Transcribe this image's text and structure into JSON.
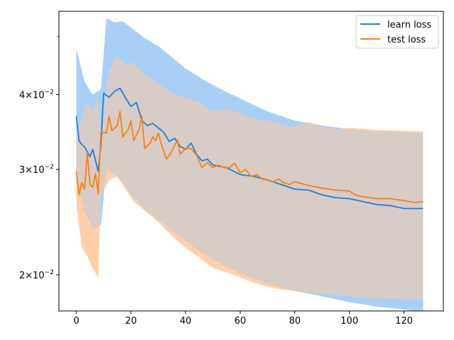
{
  "chart_data": {
    "type": "line",
    "title": "",
    "xlabel": "",
    "ylabel": "",
    "yscale": "log",
    "xlim": [
      -6.4,
      134.4
    ],
    "ylim": [
      0.0174,
      0.0551
    ],
    "xticks": [
      0,
      20,
      40,
      60,
      80,
      100,
      120
    ],
    "xtick_labels": [
      "0",
      "20",
      "40",
      "60",
      "80",
      "100",
      "120"
    ],
    "yticks": [
      0.02,
      0.03,
      0.04
    ],
    "ytick_labels": [
      {
        "base": "2×10",
        "exp": "−2"
      },
      {
        "base": "3×10",
        "exp": "−2"
      },
      {
        "base": "4×10",
        "exp": "−2"
      }
    ],
    "legend": {
      "position": "upper-right"
    },
    "series": [
      {
        "name": "learn loss",
        "color": "#1f77b4",
        "line_color": "#1a80e6",
        "band_color": "#a8d0f7",
        "keypoints": [
          [
            0,
            0.0368
          ],
          [
            1,
            0.0335
          ],
          [
            2,
            0.033
          ],
          [
            3,
            0.0327
          ],
          [
            5,
            0.0315
          ],
          [
            6,
            0.0324
          ],
          [
            8,
            0.0298
          ],
          [
            9,
            0.033
          ],
          [
            10,
            0.0402
          ],
          [
            12,
            0.0396
          ],
          [
            14,
            0.0405
          ],
          [
            16,
            0.041
          ],
          [
            18,
            0.0395
          ],
          [
            20,
            0.0382
          ],
          [
            22,
            0.0388
          ],
          [
            24,
            0.0362
          ],
          [
            26,
            0.0355
          ],
          [
            28,
            0.0358
          ],
          [
            30,
            0.0352
          ],
          [
            32,
            0.0346
          ],
          [
            34,
            0.0334
          ],
          [
            36,
            0.0338
          ],
          [
            38,
            0.0328
          ],
          [
            40,
            0.0324
          ],
          [
            42,
            0.0332
          ],
          [
            44,
            0.0318
          ],
          [
            46,
            0.031
          ],
          [
            48,
            0.0312
          ],
          [
            50,
            0.0305
          ],
          [
            55,
            0.0302
          ],
          [
            60,
            0.0294
          ],
          [
            65,
            0.0292
          ],
          [
            70,
            0.0288
          ],
          [
            75,
            0.0283
          ],
          [
            80,
            0.0278
          ],
          [
            85,
            0.0277
          ],
          [
            90,
            0.0272
          ],
          [
            95,
            0.0269
          ],
          [
            100,
            0.0268
          ],
          [
            105,
            0.0265
          ],
          [
            110,
            0.0262
          ],
          [
            115,
            0.0261
          ],
          [
            120,
            0.0258
          ],
          [
            127,
            0.0258
          ]
        ],
        "band_upper": [
          [
            0,
            0.0478
          ],
          [
            3,
            0.042
          ],
          [
            6,
            0.04
          ],
          [
            9,
            0.0408
          ],
          [
            11,
            0.0537
          ],
          [
            14,
            0.0528
          ],
          [
            17,
            0.053
          ],
          [
            20,
            0.0518
          ],
          [
            25,
            0.0497
          ],
          [
            30,
            0.0482
          ],
          [
            35,
            0.0462
          ],
          [
            40,
            0.0442
          ],
          [
            45,
            0.0428
          ],
          [
            50,
            0.0415
          ],
          [
            55,
            0.0404
          ],
          [
            60,
            0.0394
          ],
          [
            70,
            0.0375
          ],
          [
            80,
            0.0362
          ],
          [
            90,
            0.0355
          ],
          [
            100,
            0.035
          ],
          [
            110,
            0.0348
          ],
          [
            120,
            0.0346
          ],
          [
            127,
            0.0345
          ]
        ],
        "band_lower": [
          [
            0,
            0.0284
          ],
          [
            3,
            0.0255
          ],
          [
            6,
            0.0238
          ],
          [
            9,
            0.0242
          ],
          [
            11,
            0.03
          ],
          [
            14,
            0.0294
          ],
          [
            17,
            0.0285
          ],
          [
            20,
            0.0272
          ],
          [
            25,
            0.0258
          ],
          [
            30,
            0.0247
          ],
          [
            35,
            0.0237
          ],
          [
            40,
            0.0228
          ],
          [
            45,
            0.0219
          ],
          [
            50,
            0.0212
          ],
          [
            55,
            0.0206
          ],
          [
            60,
            0.0201
          ],
          [
            70,
            0.0193
          ],
          [
            80,
            0.0188
          ],
          [
            90,
            0.0184
          ],
          [
            100,
            0.018
          ],
          [
            110,
            0.0177
          ],
          [
            120,
            0.0175
          ],
          [
            127,
            0.0173
          ]
        ]
      },
      {
        "name": "test loss",
        "color": "#ff7f0e",
        "line_color": "#ff7f0e",
        "band_color": "#ffd0a8",
        "keypoints": [
          [
            0,
            0.0298
          ],
          [
            1,
            0.0272
          ],
          [
            2,
            0.0285
          ],
          [
            3,
            0.0278
          ],
          [
            4,
            0.032
          ],
          [
            5,
            0.0283
          ],
          [
            6,
            0.028
          ],
          [
            7,
            0.0295
          ],
          [
            8,
            0.0273
          ],
          [
            9,
            0.0346
          ],
          [
            11,
            0.0345
          ],
          [
            12,
            0.0368
          ],
          [
            13,
            0.0348
          ],
          [
            15,
            0.0355
          ],
          [
            16,
            0.0375
          ],
          [
            17,
            0.034
          ],
          [
            19,
            0.035
          ],
          [
            20,
            0.0362
          ],
          [
            21,
            0.0335
          ],
          [
            23,
            0.035
          ],
          [
            24,
            0.0368
          ],
          [
            25,
            0.0325
          ],
          [
            27,
            0.0332
          ],
          [
            28,
            0.034
          ],
          [
            29,
            0.0335
          ],
          [
            30,
            0.0345
          ],
          [
            31,
            0.0332
          ],
          [
            33,
            0.0312
          ],
          [
            35,
            0.0322
          ],
          [
            37,
            0.0336
          ],
          [
            38,
            0.0318
          ],
          [
            40,
            0.0325
          ],
          [
            42,
            0.0325
          ],
          [
            44,
            0.0317
          ],
          [
            46,
            0.0302
          ],
          [
            48,
            0.0308
          ],
          [
            50,
            0.0302
          ],
          [
            52,
            0.0305
          ],
          [
            54,
            0.0302
          ],
          [
            56,
            0.0302
          ],
          [
            58,
            0.0307
          ],
          [
            60,
            0.0296
          ],
          [
            62,
            0.03
          ],
          [
            64,
            0.0292
          ],
          [
            66,
            0.0294
          ],
          [
            68,
            0.0289
          ],
          [
            70,
            0.0288
          ],
          [
            72,
            0.0286
          ],
          [
            74,
            0.0289
          ],
          [
            76,
            0.0285
          ],
          [
            78,
            0.0283
          ],
          [
            80,
            0.0286
          ],
          [
            85,
            0.0282
          ],
          [
            90,
            0.0279
          ],
          [
            95,
            0.0277
          ],
          [
            100,
            0.0276
          ],
          [
            102,
            0.0272
          ],
          [
            105,
            0.027
          ],
          [
            110,
            0.0268
          ],
          [
            115,
            0.0268
          ],
          [
            120,
            0.0266
          ],
          [
            124,
            0.0264
          ],
          [
            127,
            0.0265
          ]
        ],
        "band_upper": [
          [
            0,
            0.034
          ],
          [
            2,
            0.0368
          ],
          [
            4,
            0.039
          ],
          [
            6,
            0.0375
          ],
          [
            8,
            0.0395
          ],
          [
            9,
            0.0348
          ],
          [
            12,
            0.044
          ],
          [
            15,
            0.0462
          ],
          [
            18,
            0.045
          ],
          [
            21,
            0.0452
          ],
          [
            25,
            0.0432
          ],
          [
            30,
            0.0418
          ],
          [
            35,
            0.0402
          ],
          [
            40,
            0.0395
          ],
          [
            45,
            0.0388
          ],
          [
            50,
            0.0376
          ],
          [
            55,
            0.0378
          ],
          [
            60,
            0.0372
          ],
          [
            65,
            0.0364
          ],
          [
            70,
            0.0362
          ],
          [
            75,
            0.0357
          ],
          [
            80,
            0.0353
          ],
          [
            85,
            0.036
          ],
          [
            90,
            0.0354
          ],
          [
            95,
            0.035
          ],
          [
            100,
            0.0352
          ],
          [
            110,
            0.0349
          ],
          [
            120,
            0.0348
          ],
          [
            127,
            0.0347
          ]
        ],
        "band_lower": [
          [
            0,
            0.0262
          ],
          [
            2,
            0.0222
          ],
          [
            4,
            0.0215
          ],
          [
            6,
            0.0205
          ],
          [
            8,
            0.0198
          ],
          [
            9,
            0.027
          ],
          [
            12,
            0.0288
          ],
          [
            15,
            0.0292
          ],
          [
            18,
            0.0278
          ],
          [
            21,
            0.0265
          ],
          [
            25,
            0.0256
          ],
          [
            30,
            0.0245
          ],
          [
            35,
            0.0232
          ],
          [
            40,
            0.0222
          ],
          [
            45,
            0.0214
          ],
          [
            50,
            0.0205
          ],
          [
            55,
            0.0202
          ],
          [
            60,
            0.0198
          ],
          [
            65,
            0.0194
          ],
          [
            70,
            0.0191
          ],
          [
            75,
            0.0189
          ],
          [
            80,
            0.0188
          ],
          [
            85,
            0.0186
          ],
          [
            90,
            0.0186
          ],
          [
            95,
            0.0185
          ],
          [
            100,
            0.0184
          ],
          [
            110,
            0.0183
          ],
          [
            120,
            0.0182
          ],
          [
            127,
            0.0182
          ]
        ]
      }
    ],
    "overlap_color": "#d7ccc6",
    "axis_color": "#000000"
  }
}
